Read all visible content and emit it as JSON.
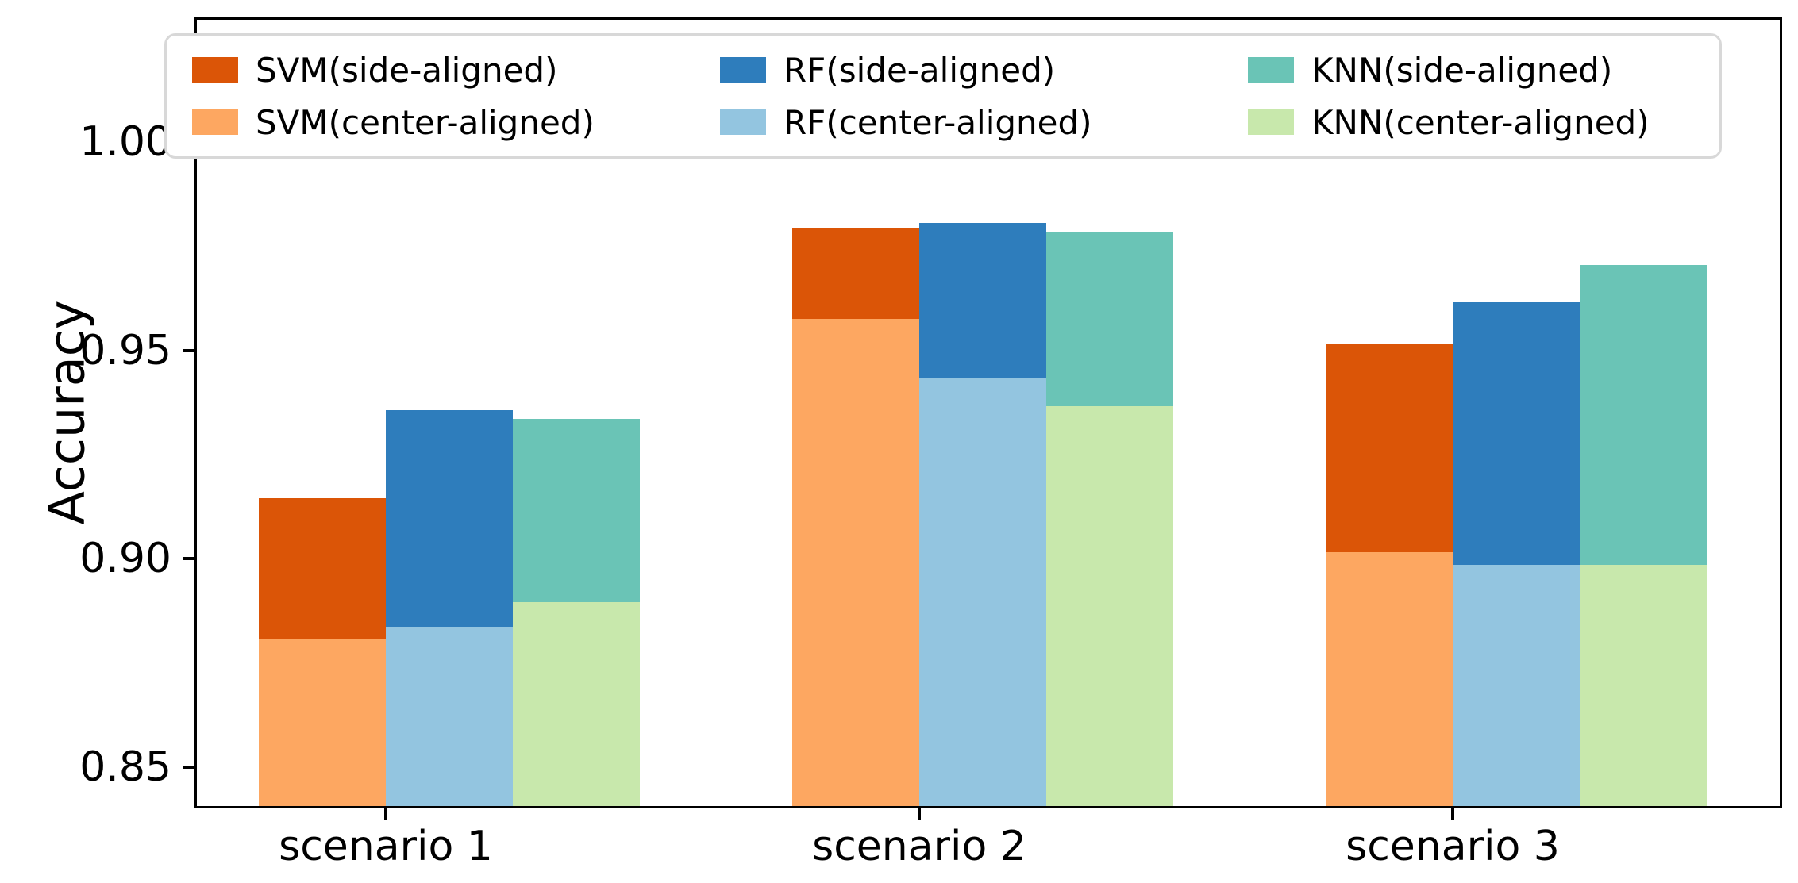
{
  "chart_data": {
    "type": "bar",
    "title": "",
    "xlabel": "",
    "ylabel": "Accuracy",
    "categories": [
      "scenario 1",
      "scenario 2",
      "scenario 3"
    ],
    "y_tick_labels": [
      "0.85",
      "0.90",
      "0.95",
      "1.00"
    ],
    "y_tick_values": [
      0.85,
      0.9,
      0.95,
      1.0
    ],
    "ylim": [
      0.84,
      1.03
    ],
    "grid": false,
    "legend_position": "top-inside",
    "bar_style": "overlaid: side-aligned (dark, taller) behind center-aligned (light, shorter), three model columns per scenario",
    "series": [
      {
        "name": "SVM(side-aligned)",
        "model": "SVM",
        "variant": "side",
        "color": "#DB5507",
        "values": [
          0.914,
          0.979,
          0.951
        ]
      },
      {
        "name": "SVM(center-aligned)",
        "model": "SVM",
        "variant": "center",
        "color": "#FDA761",
        "values": [
          0.88,
          0.957,
          0.901
        ]
      },
      {
        "name": "RF(side-aligned)",
        "model": "RF",
        "variant": "side",
        "color": "#2E7DBC",
        "values": [
          0.935,
          0.98,
          0.961
        ]
      },
      {
        "name": "RF(center-aligned)",
        "model": "RF",
        "variant": "center",
        "color": "#93C5E0",
        "values": [
          0.883,
          0.943,
          0.898
        ]
      },
      {
        "name": "KNN(side-aligned)",
        "model": "KNN",
        "variant": "side",
        "color": "#6AC4B6",
        "values": [
          0.933,
          0.978,
          0.97
        ]
      },
      {
        "name": "KNN(center-aligned)",
        "model": "KNN",
        "variant": "center",
        "color": "#C8E8AC",
        "values": [
          0.889,
          0.936,
          0.898
        ]
      }
    ],
    "colors": {
      "axis": "#000000",
      "background": "#ffffff",
      "legend_border": "#d8d8d8"
    }
  }
}
